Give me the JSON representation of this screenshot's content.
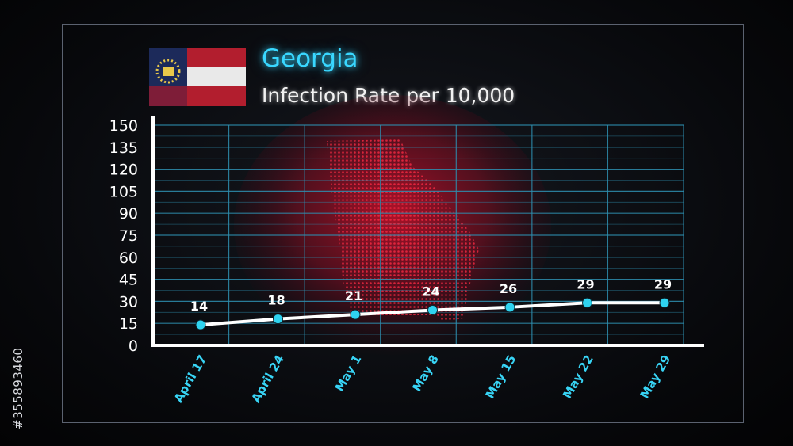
{
  "stock_id": "#355893460",
  "header": {
    "title": "Georgia",
    "subtitle": "Infection Rate per 10,000"
  },
  "colors": {
    "title": "#39d7ff",
    "axis": "#ffffff",
    "grid": "#2e8fb0",
    "line": "#ffffff",
    "marker": "#2fd3f0",
    "xtick": "#38d4f5",
    "map": "#c0102a"
  },
  "icons": {
    "flag": "georgia-state-flag-icon",
    "map": "georgia-state-map-icon"
  },
  "chart_data": {
    "type": "line",
    "title": "Georgia",
    "subtitle": "Infection Rate per 10,000",
    "xlabel": "",
    "ylabel": "",
    "categories": [
      "April 17",
      "April 24",
      "May 1",
      "May 8",
      "May 15",
      "May 22",
      "May 29"
    ],
    "series": [
      {
        "values": [
          14,
          18,
          21,
          24,
          26,
          29,
          29
        ]
      }
    ],
    "data_labels": [
      "14",
      "18",
      "21",
      "24",
      "26",
      "29",
      "29"
    ],
    "yticks": [
      0,
      15,
      30,
      45,
      60,
      75,
      90,
      105,
      120,
      135,
      150
    ],
    "ylim": [
      0,
      150
    ],
    "grid": true,
    "legend": "none"
  }
}
